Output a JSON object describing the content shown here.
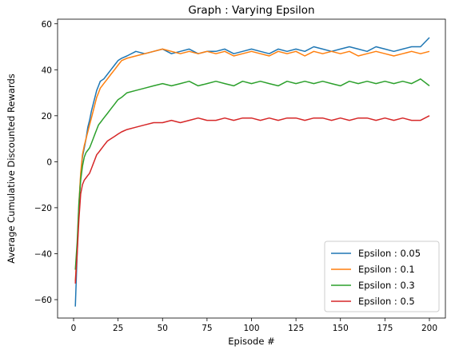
{
  "chart_data": {
    "type": "line",
    "title": "Graph : Varying Epsilon",
    "xlabel": "Episode #",
    "ylabel": "Average Cumulative Discounted Rewards",
    "xlim": [
      -9,
      209
    ],
    "ylim": [
      -68,
      62
    ],
    "xticks": [
      0,
      25,
      50,
      75,
      100,
      125,
      150,
      175,
      200
    ],
    "yticks": [
      -60,
      -40,
      -20,
      0,
      20,
      40,
      60
    ],
    "grid": false,
    "legend_position": "lower right",
    "series": [
      {
        "name": "Epsilon : 0.05",
        "color": "#1f77b4",
        "x": [
          1,
          2,
          3,
          4,
          5,
          6,
          7,
          8,
          9,
          10,
          11,
          12,
          13,
          14,
          15,
          17,
          19,
          21,
          23,
          25,
          27,
          30,
          35,
          40,
          45,
          50,
          55,
          60,
          65,
          70,
          75,
          80,
          85,
          90,
          95,
          100,
          105,
          110,
          115,
          120,
          125,
          130,
          135,
          140,
          145,
          150,
          155,
          160,
          165,
          170,
          175,
          180,
          185,
          190,
          195,
          200
        ],
        "y": [
          -63,
          -40,
          -20,
          -6,
          2,
          6,
          10,
          15,
          18,
          22,
          25,
          28,
          31,
          33,
          35,
          36,
          38,
          40,
          42,
          44,
          45,
          46,
          48,
          47,
          48,
          49,
          47,
          48,
          49,
          47,
          48,
          48,
          49,
          47,
          48,
          49,
          48,
          47,
          49,
          48,
          49,
          48,
          50,
          49,
          48,
          49,
          50,
          49,
          48,
          50,
          49,
          48,
          49,
          50,
          50,
          54
        ]
      },
      {
        "name": "Epsilon : 0.1",
        "color": "#ff7f0e",
        "x": [
          1,
          2,
          3,
          4,
          5,
          6,
          7,
          8,
          9,
          10,
          11,
          12,
          13,
          14,
          15,
          17,
          19,
          21,
          23,
          25,
          27,
          30,
          35,
          40,
          45,
          50,
          55,
          60,
          65,
          70,
          75,
          80,
          85,
          90,
          95,
          100,
          105,
          110,
          115,
          120,
          125,
          130,
          135,
          140,
          145,
          150,
          155,
          160,
          165,
          170,
          175,
          180,
          185,
          190,
          195,
          200
        ],
        "y": [
          -52,
          -38,
          -18,
          -5,
          3,
          7,
          10,
          13,
          16,
          19,
          22,
          25,
          28,
          30,
          32,
          34,
          36,
          38,
          40,
          42,
          44,
          45,
          46,
          47,
          48,
          49,
          48,
          47,
          48,
          47,
          48,
          47,
          48,
          46,
          47,
          48,
          47,
          46,
          48,
          47,
          48,
          46,
          48,
          47,
          48,
          47,
          48,
          46,
          47,
          48,
          47,
          46,
          47,
          48,
          47,
          48
        ]
      },
      {
        "name": "Epsilon : 0.3",
        "color": "#2ca02c",
        "x": [
          1,
          2,
          3,
          4,
          5,
          6,
          7,
          8,
          9,
          10,
          11,
          12,
          13,
          14,
          15,
          17,
          19,
          21,
          23,
          25,
          27,
          30,
          35,
          40,
          45,
          50,
          55,
          60,
          65,
          70,
          75,
          80,
          85,
          90,
          95,
          100,
          105,
          110,
          115,
          120,
          125,
          130,
          135,
          140,
          145,
          150,
          155,
          160,
          165,
          170,
          175,
          180,
          185,
          190,
          195,
          200
        ],
        "y": [
          -47,
          -35,
          -18,
          -8,
          -2,
          2,
          4,
          5,
          6,
          8,
          10,
          12,
          14,
          16,
          17,
          19,
          21,
          23,
          25,
          27,
          28,
          30,
          31,
          32,
          33,
          34,
          33,
          34,
          35,
          33,
          34,
          35,
          34,
          33,
          35,
          34,
          35,
          34,
          33,
          35,
          34,
          35,
          34,
          35,
          34,
          33,
          35,
          34,
          35,
          34,
          35,
          34,
          35,
          34,
          36,
          33
        ]
      },
      {
        "name": "Epsilon : 0.5",
        "color": "#d62728",
        "x": [
          1,
          2,
          3,
          4,
          5,
          6,
          7,
          8,
          9,
          10,
          11,
          12,
          13,
          14,
          15,
          17,
          19,
          21,
          23,
          25,
          27,
          30,
          35,
          40,
          45,
          50,
          55,
          60,
          65,
          70,
          75,
          80,
          85,
          90,
          95,
          100,
          105,
          110,
          115,
          120,
          125,
          130,
          135,
          140,
          145,
          150,
          155,
          160,
          165,
          170,
          175,
          180,
          185,
          190,
          195,
          200
        ],
        "y": [
          -53,
          -40,
          -25,
          -14,
          -10,
          -8,
          -7,
          -6,
          -5,
          -3,
          -1,
          1,
          3,
          4,
          5,
          7,
          9,
          10,
          11,
          12,
          13,
          14,
          15,
          16,
          17,
          17,
          18,
          17,
          18,
          19,
          18,
          18,
          19,
          18,
          19,
          19,
          18,
          19,
          18,
          19,
          19,
          18,
          19,
          19,
          18,
          19,
          18,
          19,
          19,
          18,
          19,
          18,
          19,
          18,
          18,
          20
        ]
      }
    ]
  }
}
